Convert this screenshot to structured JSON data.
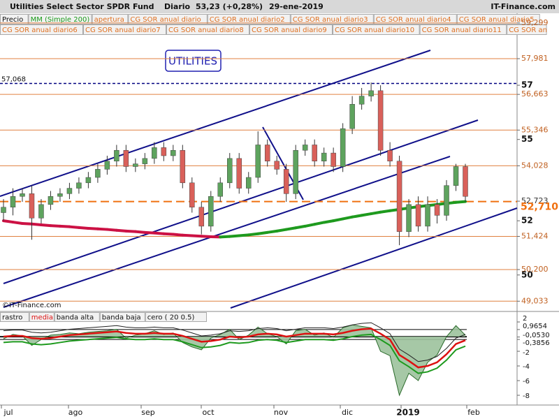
{
  "header": {
    "title": "Utilities Select Sector SPDR Fund",
    "period": "Diario",
    "quote": "53,23 (+0,28%)",
    "date": "29-ene-2019",
    "brand": "IT-Finance.com",
    "indicators": [
      "Precio",
      "MM (Simple 200)",
      "apertura",
      "CG SOR anual diario",
      "CG SOR anual diario2",
      "CG SOR anual diario3",
      "CG SOR anual diario4",
      "CG SOR anual diario5",
      "CG SOR anual diario6",
      "CG SOR anual diario7",
      "CG SOR anual diario8",
      "CG SOR anual diario9",
      "CG SOR anual diario10",
      "CG SOR anual diario11",
      "CG SOR an"
    ]
  },
  "chart_data": [
    {
      "type": "candlestick",
      "title": "UTILITIES",
      "credit": "©IT-Finance.com",
      "x_labels": [
        "jul",
        "ago",
        "sep",
        "oct",
        "nov",
        "dic",
        "2019",
        "feb"
      ],
      "ylim": [
        48.68,
        59.63
      ],
      "yticks": [
        {
          "value": 59.299,
          "label": "59,299"
        },
        {
          "value": 57.981,
          "label": "57,981"
        },
        57,
        {
          "value": 56.663,
          "label": "56,663"
        },
        {
          "value": 55.346,
          "label": "55,346"
        },
        55,
        {
          "value": 54.028,
          "label": "54,028"
        },
        {
          "value": 52.723,
          "label": "52,723"
        },
        52,
        {
          "value": 51.424,
          "label": "51,424"
        },
        {
          "value": 50.2,
          "label": "50,200"
        },
        50,
        {
          "value": 49.033,
          "label": "49,033"
        }
      ],
      "levels": [
        59.299,
        57.981,
        56.663,
        55.346,
        54.028,
        51.424,
        50.2,
        49.033
      ],
      "level_color": "#e08040",
      "reference": {
        "value": 57.068,
        "label": "57,068",
        "color": "#000080"
      },
      "last_price": {
        "value": 52.71,
        "label": "52,710",
        "color": "#f07010"
      },
      "up_color": "#5ea35e",
      "down_color": "#d9605a",
      "open": [
        52.3,
        52.5,
        52.9,
        53.0,
        52.1,
        52.6,
        52.9,
        53.0,
        53.2,
        53.4,
        53.6,
        53.9,
        54.2,
        54.6,
        54.0,
        54.1,
        54.3,
        54.7,
        54.4,
        54.6,
        53.4,
        52.5,
        51.8,
        52.9,
        53.4,
        54.3,
        53.2,
        53.6,
        54.8,
        54.2,
        53.9,
        53.0,
        54.6,
        54.8,
        54.2,
        54.5,
        54.0,
        55.4,
        56.3,
        56.6,
        56.8,
        54.6,
        54.2,
        51.6,
        52.6,
        51.8,
        52.6,
        52.2,
        53.3,
        54.0
      ],
      "high": [
        52.8,
        53.2,
        53.2,
        53.3,
        52.8,
        53.1,
        53.2,
        53.4,
        53.6,
        53.8,
        54.1,
        54.4,
        54.8,
        54.8,
        54.3,
        54.5,
        54.9,
        54.9,
        54.8,
        54.8,
        53.6,
        52.7,
        53.1,
        53.6,
        54.5,
        54.5,
        53.8,
        55.3,
        55.0,
        54.4,
        54.1,
        54.8,
        55.0,
        55.0,
        54.7,
        54.7,
        55.6,
        56.6,
        56.9,
        57.1,
        57.0,
        54.9,
        54.4,
        52.8,
        52.9,
        52.9,
        52.8,
        53.5,
        54.1,
        54.1
      ],
      "low": [
        52.0,
        52.2,
        52.7,
        51.3,
        51.9,
        52.4,
        52.7,
        52.8,
        53.0,
        53.2,
        53.4,
        53.7,
        54.0,
        53.8,
        53.8,
        53.9,
        54.1,
        54.2,
        54.2,
        53.2,
        52.3,
        51.5,
        51.6,
        52.7,
        53.2,
        53.0,
        53.0,
        53.4,
        54.0,
        53.7,
        52.7,
        52.8,
        54.4,
        54.0,
        54.0,
        53.8,
        53.8,
        55.2,
        56.1,
        56.4,
        54.4,
        54.0,
        51.1,
        51.4,
        51.6,
        51.6,
        51.9,
        52.0,
        53.1,
        52.7
      ],
      "close": [
        52.5,
        52.9,
        53.0,
        52.1,
        52.6,
        52.9,
        53.0,
        53.2,
        53.4,
        53.6,
        53.9,
        54.2,
        54.6,
        54.0,
        54.1,
        54.3,
        54.7,
        54.4,
        54.6,
        53.4,
        52.5,
        51.8,
        52.9,
        53.4,
        54.3,
        53.2,
        53.6,
        54.8,
        54.2,
        53.9,
        53.0,
        54.6,
        54.8,
        54.2,
        54.5,
        54.0,
        55.4,
        56.3,
        56.6,
        56.8,
        54.6,
        54.2,
        51.6,
        52.6,
        51.8,
        52.6,
        52.2,
        53.3,
        54.0,
        52.9
      ],
      "ma": {
        "name": "MM (Simple 200)",
        "up_color": "#1e9a1e",
        "down_color": "#cc1144",
        "values": [
          52.0,
          51.95,
          51.9,
          51.88,
          51.85,
          51.82,
          51.8,
          51.78,
          51.75,
          51.72,
          51.7,
          51.68,
          51.65,
          51.62,
          51.6,
          51.57,
          51.55,
          51.52,
          51.5,
          51.47,
          51.45,
          51.43,
          51.41,
          51.4,
          51.42,
          51.45,
          51.48,
          51.52,
          51.57,
          51.62,
          51.68,
          51.74,
          51.8,
          51.87,
          51.94,
          52.0,
          52.07,
          52.14,
          52.2,
          52.26,
          52.32,
          52.37,
          52.42,
          52.47,
          52.52,
          52.56,
          52.6,
          52.64,
          52.68,
          52.71
        ]
      }
    },
    {
      "type": "oscillator",
      "ylim": [
        -9.33,
        3.05
      ],
      "yticks": [
        2,
        {
          "value": 0.9654,
          "label": "0,9654"
        },
        {
          "value": -0.053,
          "label": "-0,0530"
        },
        {
          "value": -0.3856,
          "label": "-0,3856"
        },
        -2,
        -4,
        -6,
        -8
      ],
      "series": [
        {
          "name": "rastro",
          "color": "#2a6a2a",
          "fill": "#9cc29c",
          "values": [
            -0.3,
            0.3,
            0.1,
            -1.2,
            -0.4,
            0.2,
            0.3,
            0.5,
            0.4,
            0.6,
            0.7,
            0.8,
            1.0,
            -0.2,
            0.2,
            0.4,
            0.8,
            0.3,
            0.5,
            -0.8,
            -1.4,
            -1.8,
            -0.2,
            0.3,
            1.0,
            -0.4,
            0.2,
            1.3,
            0.4,
            0.0,
            -1.0,
            0.8,
            1.0,
            0.2,
            0.5,
            -0.1,
            1.2,
            1.6,
            1.4,
            1.2,
            -2.0,
            -2.6,
            -8.0,
            -5.0,
            -6.0,
            -3.5,
            -2.5,
            0.0,
            1.5,
            0.2
          ]
        },
        {
          "name": "media",
          "color": "#dd1111",
          "values": [
            0.0,
            0.1,
            0.1,
            -0.2,
            -0.3,
            -0.2,
            0.0,
            0.2,
            0.3,
            0.4,
            0.5,
            0.6,
            0.7,
            0.5,
            0.4,
            0.4,
            0.5,
            0.4,
            0.4,
            0.1,
            -0.3,
            -0.7,
            -0.6,
            -0.4,
            0.0,
            -0.1,
            0.0,
            0.3,
            0.4,
            0.3,
            0.0,
            0.2,
            0.4,
            0.4,
            0.4,
            0.3,
            0.5,
            0.8,
            1.0,
            1.1,
            0.4,
            -0.4,
            -2.5,
            -3.3,
            -4.2,
            -4.0,
            -3.5,
            -2.4,
            -1.0,
            -0.5
          ]
        },
        {
          "name": "banda alta",
          "color": "#222222",
          "values": [
            0.8,
            0.9,
            0.9,
            0.6,
            0.5,
            0.6,
            0.8,
            1.0,
            1.1,
            1.2,
            1.3,
            1.4,
            1.5,
            1.3,
            1.2,
            1.2,
            1.3,
            1.2,
            1.2,
            0.9,
            0.5,
            0.1,
            0.2,
            0.4,
            0.8,
            0.7,
            0.8,
            1.1,
            1.2,
            1.1,
            0.8,
            1.0,
            1.2,
            1.2,
            1.2,
            1.1,
            1.3,
            1.6,
            1.8,
            1.9,
            1.2,
            0.4,
            -1.7,
            -2.5,
            -3.4,
            -3.2,
            -2.7,
            -1.6,
            -0.2,
            0.3
          ]
        },
        {
          "name": "banda baja",
          "color": "#1e9a1e",
          "values": [
            -0.8,
            -0.7,
            -0.7,
            -1.0,
            -1.1,
            -1.0,
            -0.8,
            -0.6,
            -0.5,
            -0.4,
            -0.3,
            -0.2,
            -0.1,
            -0.3,
            -0.4,
            -0.4,
            -0.3,
            -0.4,
            -0.4,
            -0.7,
            -1.1,
            -1.5,
            -1.4,
            -1.2,
            -0.8,
            -0.9,
            -0.8,
            -0.5,
            -0.4,
            -0.5,
            -0.8,
            -0.6,
            -0.4,
            -0.4,
            -0.4,
            -0.5,
            -0.3,
            0.0,
            0.2,
            0.3,
            -0.4,
            -1.2,
            -3.3,
            -4.1,
            -5.0,
            -4.8,
            -4.3,
            -3.2,
            -1.8,
            -1.3
          ]
        }
      ],
      "baseline": {
        "name": "cero ( 20 0.5)",
        "color": "#000000"
      }
    }
  ]
}
